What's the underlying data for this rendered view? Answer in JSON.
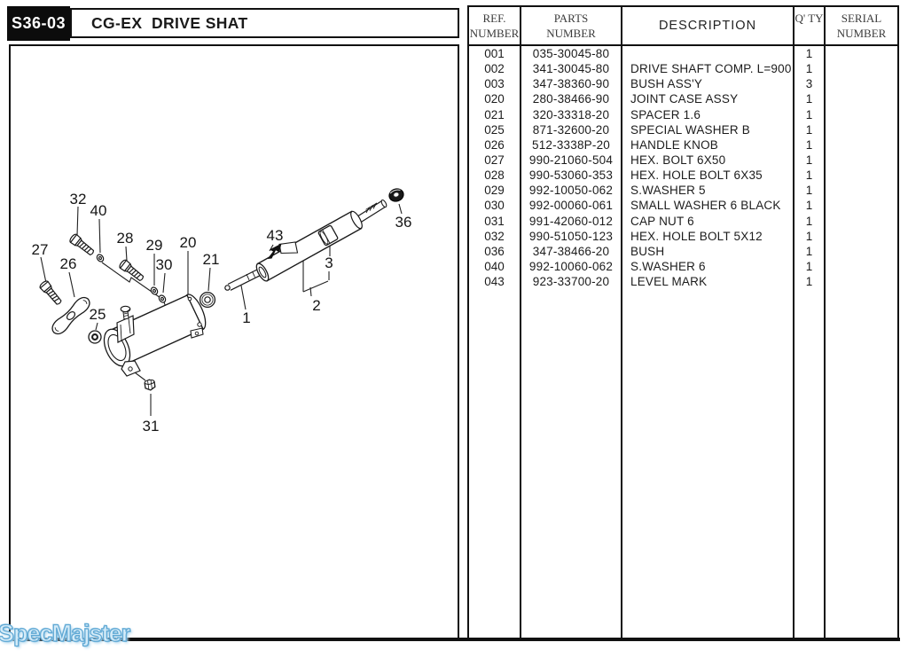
{
  "page": {
    "code": "S36-03",
    "title": "CG-EX  DRIVE SHAT",
    "watermark": "SpecMajster"
  },
  "table": {
    "column_keys": [
      "ref",
      "part",
      "desc",
      "qty",
      "serial"
    ],
    "headers": {
      "ref1": "REF.",
      "ref2": "NUMBER",
      "parts1": "PARTS",
      "parts2": "NUMBER",
      "desc": "DESCRIPTION",
      "qty": "Q' TY",
      "serial1": "SERIAL",
      "serial2": "NUMBER"
    },
    "rows": [
      {
        "ref": "001",
        "part": "035-30045-80",
        "desc": "",
        "qty": "1",
        "serial": ""
      },
      {
        "ref": "002",
        "part": "341-30045-80",
        "desc": "DRIVE SHAFT COMP. L=900",
        "qty": "1",
        "serial": ""
      },
      {
        "ref": "003",
        "part": "347-38360-90",
        "desc": "BUSH ASS'Y",
        "qty": "3",
        "serial": ""
      },
      {
        "ref": "020",
        "part": "280-38466-90",
        "desc": "JOINT CASE ASSY",
        "qty": "1",
        "serial": ""
      },
      {
        "ref": "021",
        "part": "320-33318-20",
        "desc": "SPACER 1.6",
        "qty": "1",
        "serial": ""
      },
      {
        "ref": "025",
        "part": "871-32600-20",
        "desc": "SPECIAL WASHER B",
        "qty": "1",
        "serial": ""
      },
      {
        "ref": "026",
        "part": "512-3338P-20",
        "desc": "HANDLE KNOB",
        "qty": "1",
        "serial": ""
      },
      {
        "ref": "027",
        "part": "990-21060-504",
        "desc": "HEX. BOLT 6X50",
        "qty": "1",
        "serial": ""
      },
      {
        "ref": "028",
        "part": "990-53060-353",
        "desc": "HEX. HOLE BOLT 6X35",
        "qty": "1",
        "serial": ""
      },
      {
        "ref": "029",
        "part": "992-10050-062",
        "desc": "S.WASHER 5",
        "qty": "1",
        "serial": ""
      },
      {
        "ref": "030",
        "part": "992-00060-061",
        "desc": "SMALL WASHER 6 BLACK",
        "qty": "1",
        "serial": ""
      },
      {
        "ref": "031",
        "part": "991-42060-012",
        "desc": "CAP NUT 6",
        "qty": "1",
        "serial": ""
      },
      {
        "ref": "032",
        "part": "990-51050-123",
        "desc": "HEX. HOLE BOLT 5X12",
        "qty": "1",
        "serial": ""
      },
      {
        "ref": "036",
        "part": "347-38466-20",
        "desc": "BUSH",
        "qty": "1",
        "serial": ""
      },
      {
        "ref": "040",
        "part": "992-10060-062",
        "desc": "S.WASHER 6",
        "qty": "1",
        "serial": ""
      },
      {
        "ref": "043",
        "part": "923-33700-20",
        "desc": "LEVEL MARK",
        "qty": "1",
        "serial": ""
      }
    ]
  },
  "diagram": {
    "callouts": [
      "27",
      "32",
      "40",
      "28",
      "29",
      "30",
      "20",
      "21",
      "26",
      "25",
      "31",
      "1",
      "2",
      "3",
      "43",
      "36"
    ]
  }
}
